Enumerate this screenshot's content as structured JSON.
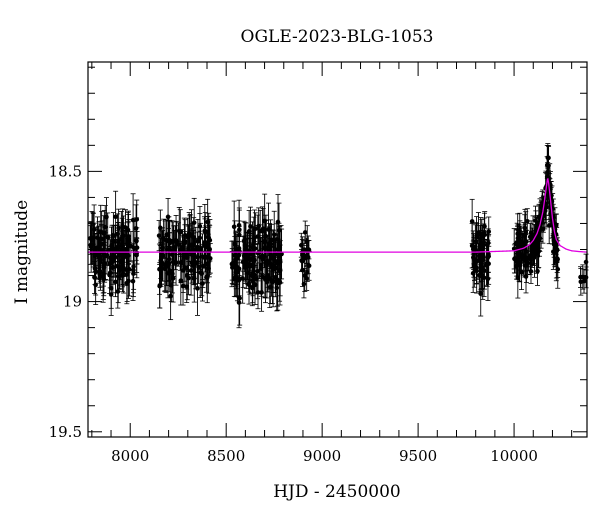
{
  "chart_data": {
    "type": "scatter",
    "title": "OGLE-2023-BLG-1053",
    "xlabel": "HJD - 2450000",
    "ylabel": "I magnitude",
    "xlim": [
      7780,
      10380
    ],
    "ylim": [
      19.52,
      18.08
    ],
    "y_inverted": true,
    "x_ticks": [
      8000,
      8500,
      9000,
      9500,
      10000
    ],
    "x_tick_labels": [
      "8000",
      "8500",
      "9000",
      "9500",
      "10000"
    ],
    "y_ticks": [
      18.5,
      19,
      19.5
    ],
    "y_tick_labels": [
      "18.5",
      "19",
      "19.5"
    ],
    "grid": false,
    "colors": {
      "points": "#000000",
      "model": "#e000e0",
      "frame": "#000000"
    },
    "baseline_mag": 18.81,
    "peak": {
      "t0": 10172,
      "mag": 18.52
    },
    "model_curve": {
      "name": "",
      "x": [
        7780,
        9800,
        10000,
        10050,
        10080,
        10100,
        10120,
        10135,
        10150,
        10160,
        10170,
        10175,
        10180,
        10190,
        10200,
        10210,
        10220,
        10240,
        10270,
        10300,
        10340,
        10380
      ],
      "y": [
        18.81,
        18.81,
        18.805,
        18.795,
        18.782,
        18.765,
        18.738,
        18.705,
        18.655,
        18.605,
        18.55,
        18.525,
        18.545,
        18.61,
        18.68,
        18.73,
        18.762,
        18.785,
        18.798,
        18.805,
        18.808,
        18.81
      ]
    },
    "observing_seasons": [
      {
        "start": 7790,
        "end": 8040,
        "mean_mag": 18.82,
        "scatter": 0.06,
        "error_bar": 0.08,
        "n": 130
      },
      {
        "start": 8150,
        "end": 8420,
        "mean_mag": 18.82,
        "scatter": 0.06,
        "error_bar": 0.08,
        "n": 130
      },
      {
        "start": 8520,
        "end": 8790,
        "mean_mag": 18.83,
        "scatter": 0.065,
        "error_bar": 0.085,
        "n": 140
      },
      {
        "start": 8890,
        "end": 8935,
        "mean_mag": 18.83,
        "scatter": 0.05,
        "error_bar": 0.05,
        "n": 20
      },
      {
        "start": 9780,
        "end": 9870,
        "mean_mag": 18.82,
        "scatter": 0.06,
        "error_bar": 0.07,
        "n": 60
      },
      {
        "start": 10000,
        "end": 10230,
        "mean_mag": 0,
        "scatter": 0.05,
        "error_bar": 0.06,
        "n": 160,
        "follows_model": true
      },
      {
        "start": 10345,
        "end": 10380,
        "mean_mag": 18.9,
        "scatter": 0.03,
        "error_bar": 0.04,
        "n": 6
      }
    ]
  }
}
